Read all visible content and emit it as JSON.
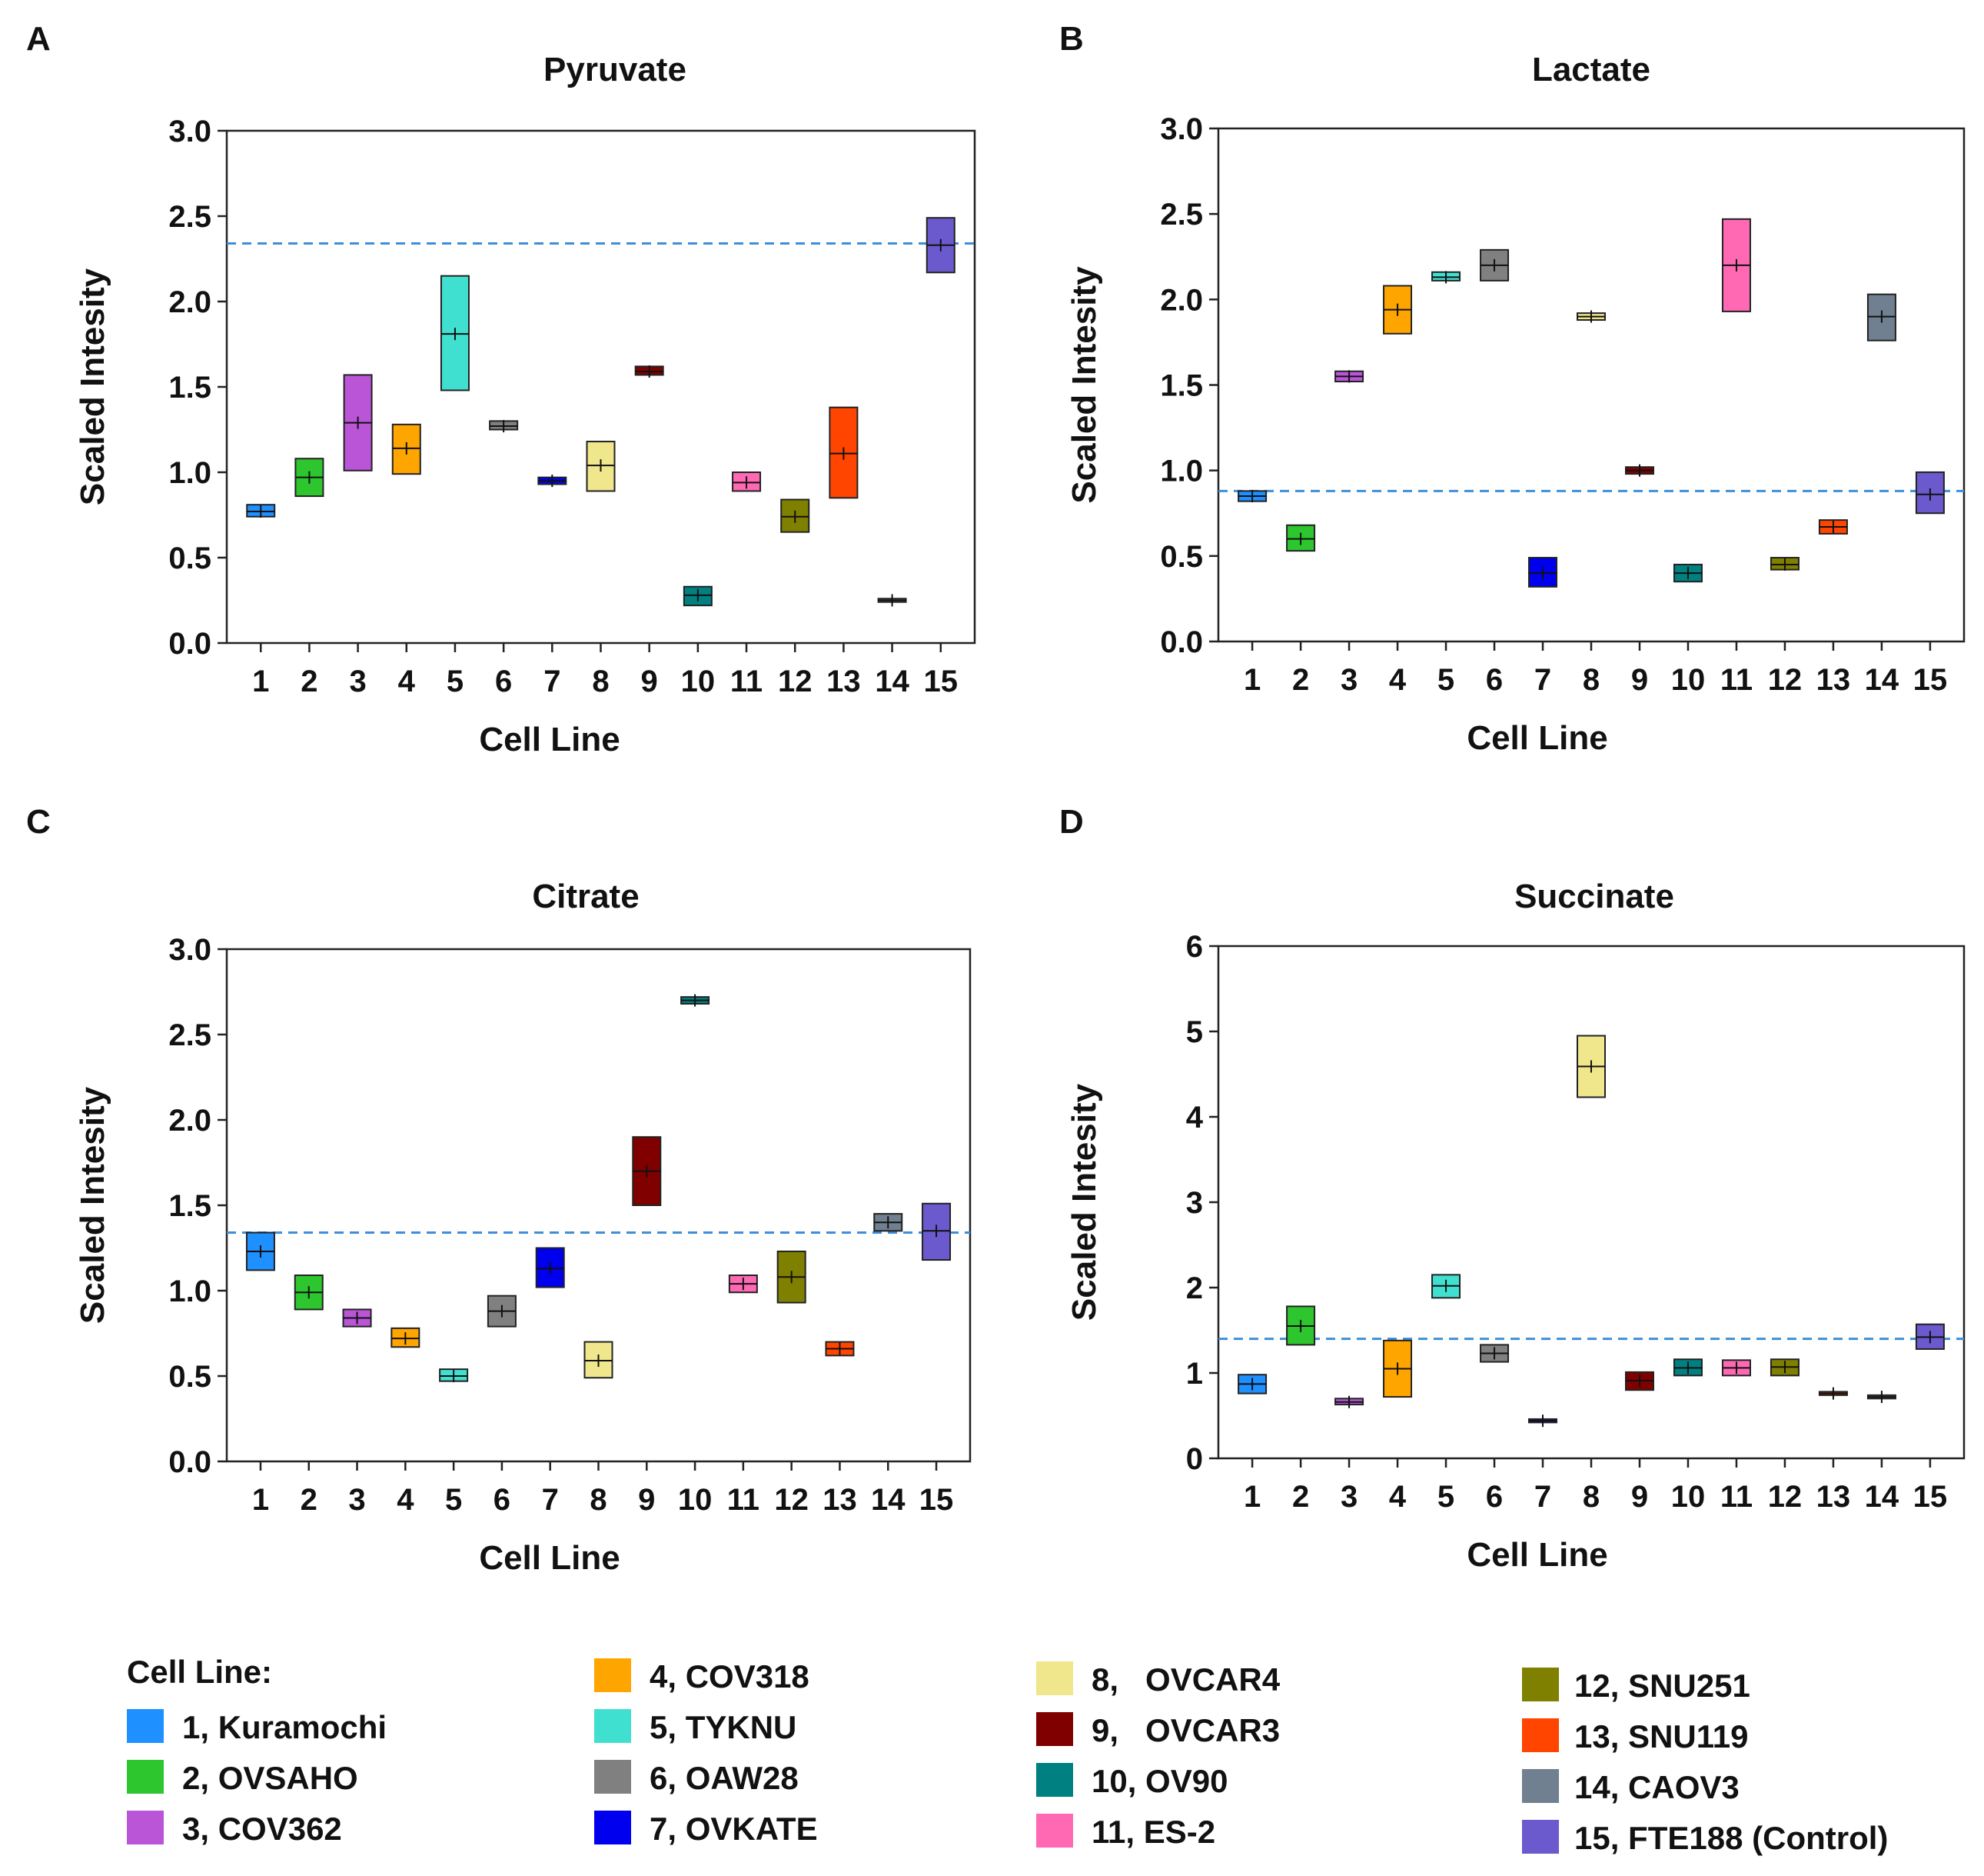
{
  "legend": {
    "title": "Cell Line:",
    "items": [
      {
        "label": "1, Kuramochi",
        "color": "#1e90ff"
      },
      {
        "label": "2, OVSAHO",
        "color": "#2ec62e"
      },
      {
        "label": "3, COV362",
        "color": "#bb55d8"
      },
      {
        "label": "4, COV318",
        "color": "#ffa500"
      },
      {
        "label": "5, TYKNU",
        "color": "#40e0d0"
      },
      {
        "label": "6, OAW28",
        "color": "#808080"
      },
      {
        "label": "7, OVKATE",
        "color": "#0000ee"
      },
      {
        "label": "8,   OVCAR4",
        "color": "#f0e68c"
      },
      {
        "label": "9,   OVCAR3",
        "color": "#800000"
      },
      {
        "label": "10, OV90",
        "color": "#008080"
      },
      {
        "label": "11, ES-2",
        "color": "#ff69b4"
      },
      {
        "label": "12, SNU251",
        "color": "#808000"
      },
      {
        "label": "13, SNU119",
        "color": "#ff4500"
      },
      {
        "label": "14, CAOV3",
        "color": "#708090"
      },
      {
        "label": "15, FTE188 (Control)",
        "color": "#6a5acd"
      }
    ]
  },
  "chart_data": [
    {
      "panel": "A",
      "type": "box",
      "title": "Pyruvate",
      "xlabel": "Cell Line",
      "ylabel": "Scaled Intesity",
      "categories": [
        "1",
        "2",
        "3",
        "4",
        "5",
        "6",
        "7",
        "8",
        "9",
        "10",
        "11",
        "12",
        "13",
        "14",
        "15"
      ],
      "ylim": [
        0,
        3.0
      ],
      "yticks": [
        "0.0",
        "0.5",
        "1.0",
        "1.5",
        "2.0",
        "2.5",
        "3.0"
      ],
      "control_line": 2.34,
      "boxes": [
        {
          "low": 0.74,
          "high": 0.81,
          "median": 0.77
        },
        {
          "low": 0.86,
          "high": 1.08,
          "median": 0.97
        },
        {
          "low": 1.01,
          "high": 1.57,
          "median": 1.29
        },
        {
          "low": 0.99,
          "high": 1.28,
          "median": 1.14
        },
        {
          "low": 1.48,
          "high": 2.15,
          "median": 1.81
        },
        {
          "low": 1.25,
          "high": 1.3,
          "median": 1.27
        },
        {
          "low": 0.93,
          "high": 0.97,
          "median": 0.95
        },
        {
          "low": 0.89,
          "high": 1.18,
          "median": 1.04
        },
        {
          "low": 1.57,
          "high": 1.62,
          "median": 1.59
        },
        {
          "low": 0.22,
          "high": 0.33,
          "median": 0.28
        },
        {
          "low": 0.89,
          "high": 1.0,
          "median": 0.94
        },
        {
          "low": 0.65,
          "high": 0.84,
          "median": 0.74
        },
        {
          "low": 0.85,
          "high": 1.38,
          "median": 1.11
        },
        {
          "low": 0.24,
          "high": 0.26,
          "median": 0.25
        },
        {
          "low": 2.17,
          "high": 2.49,
          "median": 2.33
        }
      ]
    },
    {
      "panel": "B",
      "type": "box",
      "title": "Lactate",
      "xlabel": "Cell Line",
      "ylabel": "Scaled Intesity",
      "categories": [
        "1",
        "2",
        "3",
        "4",
        "5",
        "6",
        "7",
        "8",
        "9",
        "10",
        "11",
        "12",
        "13",
        "14",
        "15"
      ],
      "ylim": [
        0,
        3.0
      ],
      "yticks": [
        "0.0",
        "0.5",
        "1.0",
        "1.5",
        "2.0",
        "2.5",
        "3.0"
      ],
      "control_line": 0.88,
      "boxes": [
        {
          "low": 0.82,
          "high": 0.88,
          "median": 0.85
        },
        {
          "low": 0.53,
          "high": 0.68,
          "median": 0.6
        },
        {
          "low": 1.52,
          "high": 1.58,
          "median": 1.55
        },
        {
          "low": 1.8,
          "high": 2.08,
          "median": 1.94
        },
        {
          "low": 2.11,
          "high": 2.16,
          "median": 2.13
        },
        {
          "low": 2.11,
          "high": 2.29,
          "median": 2.2
        },
        {
          "low": 0.32,
          "high": 0.49,
          "median": 0.4
        },
        {
          "low": 1.88,
          "high": 1.92,
          "median": 1.9
        },
        {
          "low": 0.98,
          "high": 1.02,
          "median": 1.0
        },
        {
          "low": 0.35,
          "high": 0.45,
          "median": 0.4
        },
        {
          "low": 1.93,
          "high": 2.47,
          "median": 2.2
        },
        {
          "low": 0.42,
          "high": 0.49,
          "median": 0.45
        },
        {
          "low": 0.63,
          "high": 0.71,
          "median": 0.67
        },
        {
          "low": 1.76,
          "high": 2.03,
          "median": 1.9
        },
        {
          "low": 0.75,
          "high": 0.99,
          "median": 0.86
        }
      ]
    },
    {
      "panel": "C",
      "type": "box",
      "title": "Citrate",
      "xlabel": "Cell Line",
      "ylabel": "Scaled Intesity",
      "categories": [
        "1",
        "2",
        "3",
        "4",
        "5",
        "6",
        "7",
        "8",
        "9",
        "10",
        "11",
        "12",
        "13",
        "14",
        "15"
      ],
      "ylim": [
        0,
        3.0
      ],
      "yticks": [
        "0.0",
        "0.5",
        "1.0",
        "1.5",
        "2.0",
        "2.5",
        "3.0"
      ],
      "control_line": 1.34,
      "boxes": [
        {
          "low": 1.12,
          "high": 1.34,
          "median": 1.23
        },
        {
          "low": 0.89,
          "high": 1.09,
          "median": 0.99
        },
        {
          "low": 0.79,
          "high": 0.89,
          "median": 0.84
        },
        {
          "low": 0.67,
          "high": 0.78,
          "median": 0.72
        },
        {
          "low": 0.47,
          "high": 0.54,
          "median": 0.5
        },
        {
          "low": 0.79,
          "high": 0.97,
          "median": 0.88
        },
        {
          "low": 1.02,
          "high": 1.25,
          "median": 1.13
        },
        {
          "low": 0.49,
          "high": 0.7,
          "median": 0.59
        },
        {
          "low": 1.5,
          "high": 1.9,
          "median": 1.7
        },
        {
          "low": 2.68,
          "high": 2.72,
          "median": 2.7
        },
        {
          "low": 0.99,
          "high": 1.09,
          "median": 1.04
        },
        {
          "low": 0.93,
          "high": 1.23,
          "median": 1.08
        },
        {
          "low": 0.62,
          "high": 0.7,
          "median": 0.66
        },
        {
          "low": 1.35,
          "high": 1.45,
          "median": 1.4
        },
        {
          "low": 1.18,
          "high": 1.51,
          "median": 1.35
        }
      ]
    },
    {
      "panel": "D",
      "type": "box",
      "title": "Succinate",
      "xlabel": "Cell Line",
      "ylabel": "Scaled Intesity",
      "categories": [
        "1",
        "2",
        "3",
        "4",
        "5",
        "6",
        "7",
        "8",
        "9",
        "10",
        "11",
        "12",
        "13",
        "14",
        "15"
      ],
      "ylim": [
        0,
        6
      ],
      "yticks": [
        "0",
        "1",
        "2",
        "3",
        "4",
        "5",
        "6"
      ],
      "control_line": 1.4,
      "boxes": [
        {
          "low": 0.76,
          "high": 0.98,
          "median": 0.87
        },
        {
          "low": 1.33,
          "high": 1.78,
          "median": 1.55
        },
        {
          "low": 0.63,
          "high": 0.7,
          "median": 0.66
        },
        {
          "low": 0.72,
          "high": 1.38,
          "median": 1.05
        },
        {
          "low": 1.88,
          "high": 2.15,
          "median": 2.02
        },
        {
          "low": 1.13,
          "high": 1.33,
          "median": 1.23
        },
        {
          "low": 0.42,
          "high": 0.46,
          "median": 0.44
        },
        {
          "low": 4.23,
          "high": 4.95,
          "median": 4.59
        },
        {
          "low": 0.8,
          "high": 1.01,
          "median": 0.91
        },
        {
          "low": 0.97,
          "high": 1.16,
          "median": 1.06
        },
        {
          "low": 0.97,
          "high": 1.15,
          "median": 1.06
        },
        {
          "low": 0.97,
          "high": 1.16,
          "median": 1.07
        },
        {
          "low": 0.74,
          "high": 0.78,
          "median": 0.76
        },
        {
          "low": 0.7,
          "high": 0.74,
          "median": 0.72
        },
        {
          "low": 1.28,
          "high": 1.57,
          "median": 1.42
        }
      ]
    }
  ]
}
